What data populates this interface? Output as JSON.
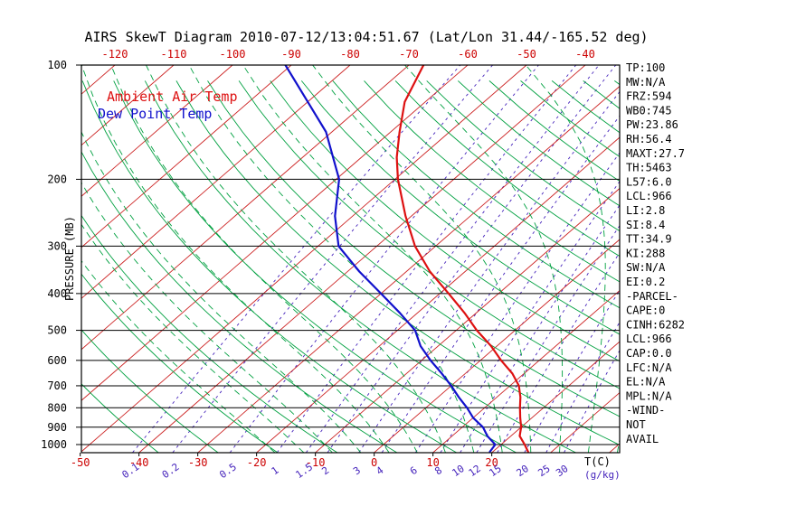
{
  "chart_data": {
    "type": "skewt",
    "title": "AIRS SkewT Diagram 2010-07-12/13:04:51.67 (Lat/Lon 31.44/-165.52 deg)",
    "x_axis": {
      "label": "T(C)",
      "label_color": "#000000",
      "tick_color": "#cc0000",
      "top_tick_labels": [
        -120,
        -110,
        -100,
        -90,
        -80,
        -70,
        -60,
        -50,
        -40
      ],
      "bottom_tick_labels": [
        -50,
        -40,
        -30,
        -20,
        -10,
        0,
        10,
        20
      ]
    },
    "y_axis": {
      "label": "PRESSURE (MB)",
      "scale": "log",
      "ticks": [
        100,
        200,
        300,
        400,
        500,
        600,
        700,
        800,
        900,
        1000
      ],
      "range": [
        100,
        1050
      ]
    },
    "isotherms": {
      "start": -130,
      "end": 40,
      "step": 10,
      "color": "#cc2222"
    },
    "dry_adiabats": {
      "start": -40,
      "end": 180,
      "step": 10,
      "color": "#00a040"
    },
    "moist_adiabats": {
      "start": -20,
      "end": 40,
      "step": 5,
      "color": "#00a040"
    },
    "mixing_ratio_lines": {
      "values": [
        0.1,
        0.2,
        0.5,
        1,
        1.5,
        2,
        3,
        4,
        6,
        8,
        10,
        12,
        15,
        20,
        25,
        30
      ],
      "color": "#4422bb",
      "unit_label": "(g/kg)"
    },
    "series": [
      {
        "name": "Ambient Air Temp",
        "color": "#dd1111",
        "points_format": "[pressure_mb, temp_c]",
        "points": [
          [
            1045,
            26
          ],
          [
            1000,
            24
          ],
          [
            950,
            21.5
          ],
          [
            900,
            20
          ],
          [
            850,
            18
          ],
          [
            800,
            16
          ],
          [
            750,
            14
          ],
          [
            700,
            11.5
          ],
          [
            650,
            8
          ],
          [
            600,
            3.5
          ],
          [
            550,
            -1
          ],
          [
            500,
            -6.5
          ],
          [
            450,
            -12
          ],
          [
            400,
            -18.5
          ],
          [
            350,
            -26
          ],
          [
            300,
            -33.5
          ],
          [
            250,
            -41
          ],
          [
            200,
            -49.5
          ],
          [
            175,
            -54
          ],
          [
            150,
            -58.5
          ],
          [
            125,
            -63.5
          ],
          [
            100,
            -67.5
          ]
        ]
      },
      {
        "name": "Dew Point Temp",
        "color": "#1111cc",
        "points_format": "[pressure_mb, temp_c]",
        "points": [
          [
            1045,
            19.5
          ],
          [
            1000,
            19
          ],
          [
            950,
            16
          ],
          [
            900,
            13.5
          ],
          [
            850,
            10
          ],
          [
            800,
            7
          ],
          [
            750,
            3.5
          ],
          [
            700,
            0
          ],
          [
            650,
            -4
          ],
          [
            600,
            -8.5
          ],
          [
            550,
            -13
          ],
          [
            500,
            -17
          ],
          [
            450,
            -23
          ],
          [
            400,
            -30
          ],
          [
            350,
            -38
          ],
          [
            300,
            -46.5
          ],
          [
            250,
            -53
          ],
          [
            200,
            -59.5
          ],
          [
            150,
            -71
          ],
          [
            125,
            -80
          ],
          [
            100,
            -91
          ]
        ]
      }
    ]
  },
  "stats_panel": {
    "lines": [
      "TP:100",
      "MW:N/A",
      "FRZ:594",
      "WB0:745",
      "PW:23.86",
      "RH:56.4",
      "MAXT:27.7",
      "TH:5463",
      "L57:6.0",
      "LCL:966",
      "LI:2.8",
      "SI:8.4",
      "TT:34.9",
      "KI:288",
      "SW:N/A",
      "EI:0.2",
      "-PARCEL-",
      "CAPE:0",
      "CINH:6282",
      "LCL:966",
      "CAP:0.0",
      "LFC:N/A",
      "EL:N/A",
      "MPL:N/A",
      "-WIND-",
      "NOT",
      "AVAIL"
    ]
  }
}
